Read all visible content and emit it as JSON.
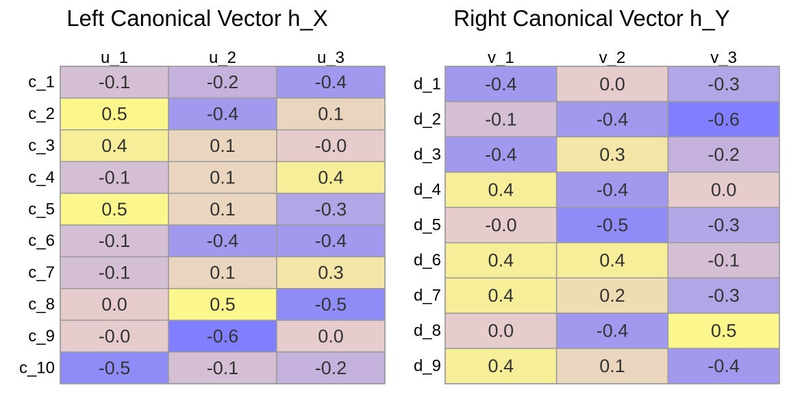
{
  "chart_data": [
    {
      "type": "heatmap",
      "title": "Left Canonical Vector h_X",
      "columns": [
        "u_1",
        "u_2",
        "u_3"
      ],
      "rows": [
        "c_1",
        "c_2",
        "c_3",
        "c_4",
        "c_5",
        "c_6",
        "c_7",
        "c_8",
        "c_9",
        "c_10"
      ],
      "values": [
        [
          -0.1,
          -0.2,
          -0.4
        ],
        [
          0.5,
          -0.4,
          0.1
        ],
        [
          0.4,
          0.1,
          -0.0
        ],
        [
          -0.1,
          0.1,
          0.4
        ],
        [
          0.5,
          0.1,
          -0.3
        ],
        [
          -0.1,
          -0.4,
          -0.4
        ],
        [
          -0.1,
          0.1,
          0.3
        ],
        [
          0.0,
          0.5,
          -0.5
        ],
        [
          -0.0,
          -0.6,
          0.0
        ],
        [
          -0.5,
          -0.1,
          -0.2
        ]
      ],
      "labels": [
        [
          "-0.1",
          "-0.2",
          "-0.4"
        ],
        [
          "0.5",
          "-0.4",
          "0.1"
        ],
        [
          "0.4",
          "0.1",
          "-0.0"
        ],
        [
          "-0.1",
          "0.1",
          "0.4"
        ],
        [
          "0.5",
          "0.1",
          "-0.3"
        ],
        [
          "-0.1",
          "-0.4",
          "-0.4"
        ],
        [
          "-0.1",
          "0.1",
          "0.3"
        ],
        [
          "0.0",
          "0.5",
          "-0.5"
        ],
        [
          "-0.0",
          "-0.6",
          "0.0"
        ],
        [
          "-0.5",
          "-0.1",
          "-0.2"
        ]
      ],
      "colormap": {
        "low": "#7f7fff",
        "mid": "#e6cccc",
        "high": "#ffff7f",
        "min": -0.6,
        "max": 0.6
      },
      "grid": true,
      "legend": "none"
    },
    {
      "type": "heatmap",
      "title": "Right Canonical Vector h_Y",
      "columns": [
        "v_1",
        "v_2",
        "v_3"
      ],
      "rows": [
        "d_1",
        "d_2",
        "d_3",
        "d_4",
        "d_5",
        "d_6",
        "d_7",
        "d_8",
        "d_9"
      ],
      "values": [
        [
          -0.4,
          0.0,
          -0.3
        ],
        [
          -0.1,
          -0.4,
          -0.6
        ],
        [
          -0.4,
          0.3,
          -0.2
        ],
        [
          0.4,
          -0.4,
          0.0
        ],
        [
          -0.0,
          -0.5,
          -0.3
        ],
        [
          0.4,
          0.4,
          -0.1
        ],
        [
          0.4,
          0.2,
          -0.3
        ],
        [
          0.0,
          -0.4,
          0.5
        ],
        [
          0.4,
          0.1,
          -0.4
        ]
      ],
      "labels": [
        [
          "-0.4",
          "0.0",
          "-0.3"
        ],
        [
          "-0.1",
          "-0.4",
          "-0.6"
        ],
        [
          "-0.4",
          "0.3",
          "-0.2"
        ],
        [
          "0.4",
          "-0.4",
          "0.0"
        ],
        [
          "-0.0",
          "-0.5",
          "-0.3"
        ],
        [
          "0.4",
          "0.4",
          "-0.1"
        ],
        [
          "0.4",
          "0.2",
          "-0.3"
        ],
        [
          "0.0",
          "-0.4",
          "0.5"
        ],
        [
          "0.4",
          "0.1",
          "-0.4"
        ]
      ],
      "colormap": {
        "low": "#7f7fff",
        "mid": "#e6cccc",
        "high": "#ffff7f",
        "min": -0.6,
        "max": 0.6
      },
      "grid": true,
      "legend": "none"
    }
  ]
}
